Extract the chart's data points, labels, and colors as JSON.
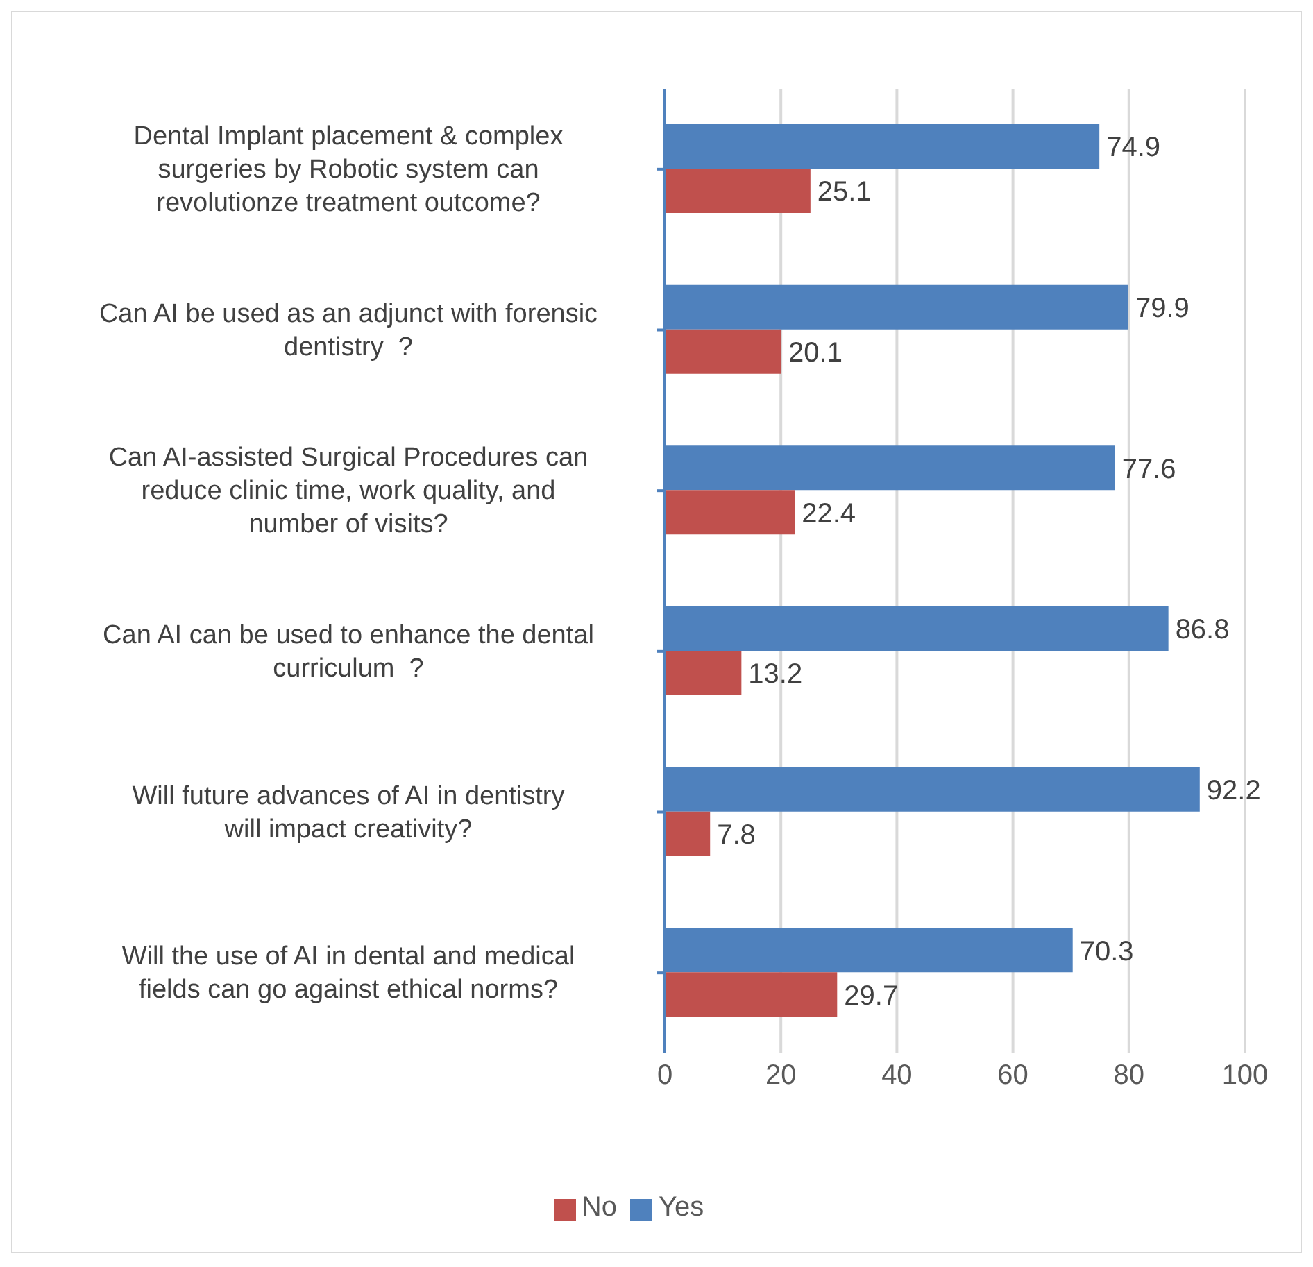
{
  "chart_data": {
    "type": "bar",
    "orientation": "horizontal",
    "categories": [
      "Dental Implant placement & complex surgeries by Robotic system can revolutionze treatment outcome?",
      "Can AI be used as an adjunct with forensic dentistry  ?",
      "Can AI-assisted Surgical Procedures can reduce clinic time, work quality, and number of visits?",
      "Can AI can be used to enhance the dental curriculum  ?",
      "Will future advances of AI in dentistry will impact creativity?",
      "Will the use of AI in dental and medical fields can go against ethical norms?"
    ],
    "series": [
      {
        "name": "Yes",
        "color": "#4f81bd",
        "values": [
          74.9,
          79.9,
          77.6,
          86.8,
          92.2,
          70.3
        ]
      },
      {
        "name": "No",
        "color": "#c0504d",
        "values": [
          25.1,
          20.1,
          22.4,
          13.2,
          7.8,
          29.7
        ]
      }
    ],
    "xlim": [
      0,
      100
    ],
    "xticks": [
      0,
      20,
      40,
      60,
      80,
      100
    ],
    "grid": "x",
    "data_labels": true,
    "legend": "bottom"
  }
}
